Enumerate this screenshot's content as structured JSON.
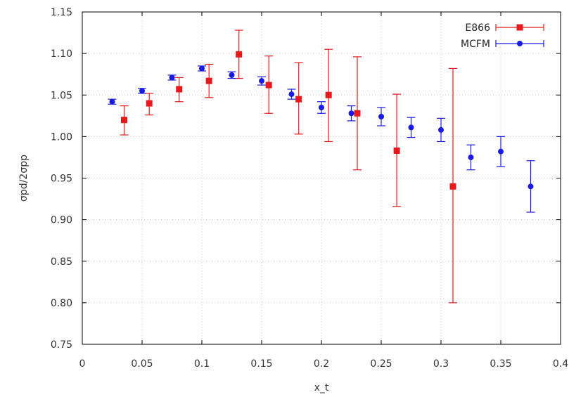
{
  "chart_data": {
    "type": "scatter",
    "title": "",
    "xlabel": "x_t",
    "ylabel": "σpd/2σpp",
    "xlim": [
      0,
      0.4
    ],
    "ylim": [
      0.75,
      1.15
    ],
    "x_ticks": [
      0,
      0.05,
      0.1,
      0.15,
      0.2,
      0.25,
      0.3,
      0.35,
      0.4
    ],
    "x_tick_labels": [
      "0",
      "0.05",
      "0.1",
      "0.15",
      "0.2",
      "0.25",
      "0.3",
      "0.35",
      "0.4"
    ],
    "y_ticks": [
      0.75,
      0.8,
      0.85,
      0.9,
      0.95,
      1.0,
      1.05,
      1.1,
      1.15
    ],
    "y_tick_labels": [
      "0.75",
      "0.80",
      "0.85",
      "0.90",
      "0.95",
      "1.00",
      "1.05",
      "1.10",
      "1.15"
    ],
    "grid": true,
    "legend_position": "top-right",
    "series": [
      {
        "name": "E866",
        "color": "#e8191c",
        "marker": "square",
        "points": [
          {
            "x": 0.035,
            "y": 1.02,
            "err_lo": 0.018,
            "err_hi": 0.017
          },
          {
            "x": 0.056,
            "y": 1.04,
            "err_lo": 0.014,
            "err_hi": 0.012
          },
          {
            "x": 0.081,
            "y": 1.057,
            "err_lo": 0.015,
            "err_hi": 0.014
          },
          {
            "x": 0.106,
            "y": 1.067,
            "err_lo": 0.02,
            "err_hi": 0.02
          },
          {
            "x": 0.131,
            "y": 1.099,
            "err_lo": 0.029,
            "err_hi": 0.029
          },
          {
            "x": 0.156,
            "y": 1.062,
            "err_lo": 0.034,
            "err_hi": 0.035
          },
          {
            "x": 0.181,
            "y": 1.045,
            "err_lo": 0.042,
            "err_hi": 0.044
          },
          {
            "x": 0.206,
            "y": 1.05,
            "err_lo": 0.056,
            "err_hi": 0.055
          },
          {
            "x": 0.23,
            "y": 1.028,
            "err_lo": 0.068,
            "err_hi": 0.068
          },
          {
            "x": 0.263,
            "y": 0.983,
            "err_lo": 0.067,
            "err_hi": 0.068
          },
          {
            "x": 0.31,
            "y": 0.94,
            "err_lo": 0.14,
            "err_hi": 0.142
          }
        ]
      },
      {
        "name": "MCFM",
        "color": "#1a1ae6",
        "marker": "circle",
        "points": [
          {
            "x": 0.025,
            "y": 1.042,
            "err_lo": 0.003,
            "err_hi": 0.003
          },
          {
            "x": 0.05,
            "y": 1.055,
            "err_lo": 0.003,
            "err_hi": 0.003
          },
          {
            "x": 0.075,
            "y": 1.071,
            "err_lo": 0.003,
            "err_hi": 0.003
          },
          {
            "x": 0.1,
            "y": 1.082,
            "err_lo": 0.003,
            "err_hi": 0.003
          },
          {
            "x": 0.125,
            "y": 1.074,
            "err_lo": 0.004,
            "err_hi": 0.004
          },
          {
            "x": 0.15,
            "y": 1.067,
            "err_lo": 0.005,
            "err_hi": 0.005
          },
          {
            "x": 0.175,
            "y": 1.051,
            "err_lo": 0.006,
            "err_hi": 0.006
          },
          {
            "x": 0.2,
            "y": 1.035,
            "err_lo": 0.007,
            "err_hi": 0.007
          },
          {
            "x": 0.225,
            "y": 1.028,
            "err_lo": 0.009,
            "err_hi": 0.009
          },
          {
            "x": 0.25,
            "y": 1.024,
            "err_lo": 0.011,
            "err_hi": 0.011
          },
          {
            "x": 0.275,
            "y": 1.011,
            "err_lo": 0.012,
            "err_hi": 0.012
          },
          {
            "x": 0.3,
            "y": 1.008,
            "err_lo": 0.014,
            "err_hi": 0.014
          },
          {
            "x": 0.325,
            "y": 0.975,
            "err_lo": 0.015,
            "err_hi": 0.015
          },
          {
            "x": 0.35,
            "y": 0.982,
            "err_lo": 0.018,
            "err_hi": 0.018
          },
          {
            "x": 0.375,
            "y": 0.94,
            "err_lo": 0.031,
            "err_hi": 0.031
          }
        ]
      }
    ]
  }
}
